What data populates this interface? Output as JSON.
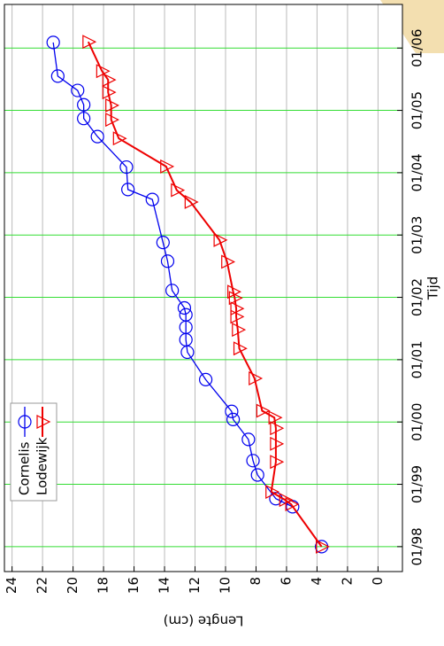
{
  "chart_data": {
    "type": "line",
    "x_label": "Tijd",
    "y_label": "Lengte (cm)",
    "xlim": [
      1997.6,
      2006.7
    ],
    "ylim": [
      -1.6,
      24.5
    ],
    "xticks": [
      {
        "value": 1998,
        "label": "01/98"
      },
      {
        "value": 1999,
        "label": "01/99"
      },
      {
        "value": 2000,
        "label": "01/00"
      },
      {
        "value": 2001,
        "label": "01/01"
      },
      {
        "value": 2002,
        "label": "01/02"
      },
      {
        "value": 2003,
        "label": "01/03"
      },
      {
        "value": 2004,
        "label": "01/04"
      },
      {
        "value": 2005,
        "label": "01/05"
      },
      {
        "value": 2006,
        "label": "01/06"
      }
    ],
    "yticks": [
      0,
      2,
      4,
      6,
      8,
      10,
      12,
      14,
      16,
      18,
      20,
      22,
      24
    ],
    "grid": true,
    "xgrid_color": "#33dd33",
    "ygrid_color": "#bbbbbb",
    "legend": "upper left",
    "series": [
      {
        "name": "Cornelis",
        "color": "#0000ee",
        "marker": "circle",
        "x": [
          1998.0,
          1998.64,
          1998.77,
          1999.15,
          1999.38,
          1999.72,
          2000.04,
          2000.17,
          2000.68,
          2001.12,
          2001.32,
          2001.52,
          2001.72,
          2001.83,
          2002.11,
          2002.58,
          2002.88,
          2003.57,
          2003.73,
          2004.09,
          2004.58,
          2004.87,
          2005.09,
          2005.32,
          2005.55,
          2006.09
        ],
        "values": [
          3.7,
          5.6,
          6.7,
          7.9,
          8.2,
          8.5,
          9.5,
          9.6,
          11.3,
          12.5,
          12.6,
          12.6,
          12.6,
          12.7,
          13.5,
          13.8,
          14.1,
          14.8,
          16.4,
          16.5,
          18.4,
          19.3,
          19.3,
          19.7,
          21.0,
          21.3
        ]
      },
      {
        "name": "Lodewijk",
        "color": "#ee0000",
        "marker": "triangle",
        "x": [
          1998.0,
          1998.68,
          1998.75,
          1998.88,
          1999.36,
          1999.65,
          1999.9,
          2000.07,
          2000.18,
          2000.7,
          2001.18,
          2001.48,
          2001.69,
          2001.82,
          2001.99,
          2002.09,
          2002.57,
          2002.92,
          2003.53,
          2003.72,
          2004.1,
          2004.55,
          2004.85,
          2005.08,
          2005.29,
          2005.49,
          2005.63,
          2006.1
        ],
        "values": [
          3.7,
          5.7,
          6.1,
          7.0,
          6.7,
          6.7,
          6.7,
          6.8,
          7.6,
          8.1,
          9.1,
          9.2,
          9.3,
          9.3,
          9.4,
          9.5,
          9.9,
          10.4,
          12.3,
          13.2,
          13.9,
          17.0,
          17.5,
          17.5,
          17.7,
          17.7,
          18.1,
          19.0
        ]
      }
    ]
  }
}
